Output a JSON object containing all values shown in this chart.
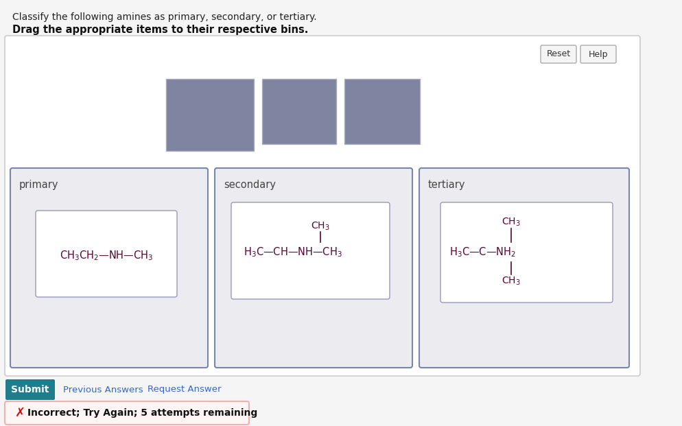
{
  "title_line1": "Classify the following amines as primary, secondary, or tertiary.",
  "title_line2": "Drag the appropriate items to their respective bins.",
  "bg_color": "#f5f5f5",
  "outer_box_bg": "#ffffff",
  "outer_box_edge": "#cccccc",
  "panel_bg": "#ebebf0",
  "formula_box_bg": "#ffffff",
  "formula_box_border": "#9999bb",
  "text_color": "#5c0030",
  "label_color": "#444444",
  "gray_box_color": "#7f84a0",
  "gray_box_edge": "#aaaabc",
  "submit_bg": "#1e7e8c",
  "submit_text": "Submit",
  "link_color": "#3366cc",
  "link1": "Previous Answers",
  "link2": "Request Answer",
  "error_text": "Incorrect; Try Again; 5 attempts remaining",
  "reset_text": "Reset",
  "help_text": "Help",
  "error_box_edge": "#f0b0b0",
  "error_box_bg": "#fff5f5",
  "error_x_color": "#cc1111"
}
